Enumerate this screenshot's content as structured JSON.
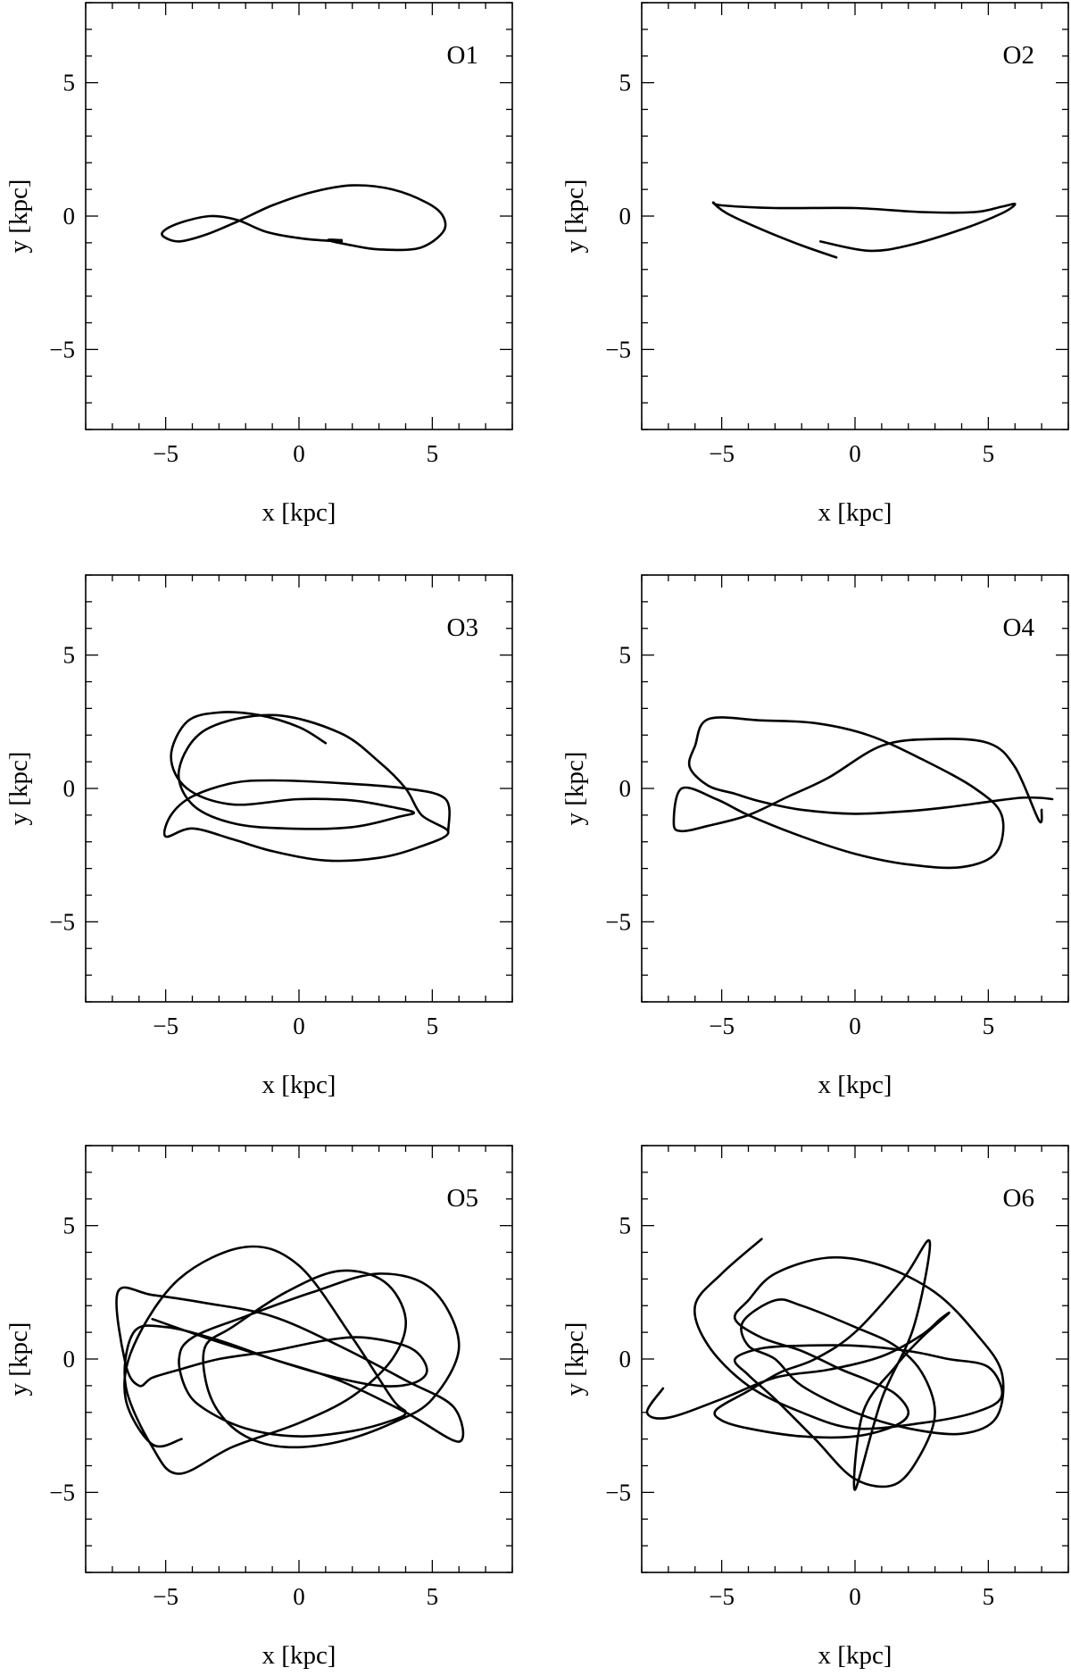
{
  "chart_data": [
    {
      "type": "line",
      "panel_label": "O1",
      "xlabel": "x [kpc]",
      "ylabel": "y [kpc]",
      "xlim": [
        -8,
        8
      ],
      "ylim": [
        -8,
        8
      ],
      "xticks": [
        -5,
        0,
        5
      ],
      "yticks": [
        -5,
        0,
        5
      ],
      "xtick_labels": [
        "−5",
        "0",
        "5"
      ],
      "ytick_labels": [
        "−5",
        "0",
        "5"
      ],
      "series": [
        {
          "x": [
            1.6,
            0.2,
            -1.2,
            -2.3,
            -3.3,
            -4.3,
            -5.0,
            -5.1,
            -4.5,
            -3.5,
            -2.3,
            -1.0,
            0.5,
            2.0,
            3.5,
            4.8,
            5.4,
            5.4,
            4.5,
            3.0,
            2.0,
            1.1,
            1.6
          ],
          "y": [
            -0.95,
            -0.85,
            -0.6,
            -0.15,
            0.0,
            -0.2,
            -0.5,
            -0.75,
            -0.95,
            -0.7,
            -0.2,
            0.4,
            0.9,
            1.15,
            1.0,
            0.5,
            0.0,
            -0.6,
            -1.2,
            -1.25,
            -1.1,
            -0.9,
            -0.9
          ]
        }
      ]
    },
    {
      "type": "line",
      "panel_label": "O2",
      "xlabel": "x [kpc]",
      "ylabel": "y [kpc]",
      "xlim": [
        -8,
        8
      ],
      "ylim": [
        -8,
        8
      ],
      "xticks": [
        -5,
        0,
        5
      ],
      "yticks": [
        -5,
        0,
        5
      ],
      "xtick_labels": [
        "−5",
        "0",
        "5"
      ],
      "ytick_labels": [
        "−5",
        "0",
        "5"
      ],
      "series": [
        {
          "x": [
            -0.7,
            -2.0,
            -3.5,
            -4.8,
            -5.3,
            -5.0,
            -3.0,
            0.0,
            2.5,
            4.5,
            5.5,
            6.0,
            5.5,
            4.0,
            2.0,
            0.5,
            -1.3
          ],
          "y": [
            -1.55,
            -1.1,
            -0.5,
            0.1,
            0.5,
            0.4,
            0.3,
            0.3,
            0.15,
            0.15,
            0.35,
            0.45,
            0.1,
            -0.5,
            -1.1,
            -1.3,
            -0.95
          ]
        }
      ]
    },
    {
      "type": "line",
      "panel_label": "O3",
      "xlabel": "x [kpc]",
      "ylabel": "y [kpc]",
      "xlim": [
        -8,
        8
      ],
      "ylim": [
        -8,
        8
      ],
      "xticks": [
        -5,
        0,
        5
      ],
      "yticks": [
        -5,
        0,
        5
      ],
      "xtick_labels": [
        "−5",
        "0",
        "5"
      ],
      "ytick_labels": [
        "−5",
        "0",
        "5"
      ],
      "series": [
        {
          "x": [
            1.0,
            0.0,
            -1.5,
            -3.0,
            -4.2,
            -4.8,
            -4.2,
            -2.5,
            0.0,
            2.0,
            3.5,
            4.3,
            3.8,
            2.0,
            -0.5,
            -2.5,
            -4.0,
            -4.5,
            -3.5,
            -1.0,
            1.5,
            3.0,
            4.0,
            4.6,
            5.6,
            4.5,
            3.0,
            1.0,
            -1.0,
            -2.5,
            -4.0,
            -5.0,
            -4.8,
            -4.0,
            -2.5,
            -1.0,
            1.5,
            4.0,
            5.5,
            5.6
          ],
          "y": [
            1.7,
            2.3,
            2.75,
            2.85,
            2.5,
            1.2,
            0.0,
            -0.6,
            -0.4,
            -0.45,
            -0.7,
            -0.9,
            -1.05,
            -1.45,
            -1.5,
            -1.3,
            -0.6,
            0.7,
            2.2,
            2.75,
            2.1,
            1.0,
            0.0,
            -1.0,
            -1.65,
            -2.2,
            -2.6,
            -2.7,
            -2.35,
            -1.9,
            -1.5,
            -1.8,
            -1.0,
            -0.3,
            0.2,
            0.3,
            0.2,
            0.0,
            -0.4,
            -1.6
          ]
        }
      ]
    },
    {
      "type": "line",
      "panel_label": "O4",
      "xlabel": "x [kpc]",
      "ylabel": "y [kpc]",
      "xlim": [
        -8,
        8
      ],
      "ylim": [
        -8,
        8
      ],
      "xticks": [
        -5,
        0,
        5
      ],
      "yticks": [
        -5,
        0,
        5
      ],
      "xtick_labels": [
        "−5",
        "0",
        "5"
      ],
      "ytick_labels": [
        "−5",
        "0",
        "5"
      ],
      "series": [
        {
          "x": [
            7.4,
            6.9,
            6.2,
            5.0,
            3.5,
            2.0,
            0.0,
            -2.0,
            -3.5,
            -4.5,
            -5.5,
            -6.2,
            -6.0,
            -5.5,
            -3.5,
            -1.5,
            0.5,
            2.5,
            4.5,
            5.5,
            5.3,
            4.0,
            2.0,
            0.0,
            -2.0,
            -4.0,
            -5.2,
            -6.5,
            -6.8,
            -6.5,
            -5.5,
            -4.0,
            -2.5,
            -1.0,
            1.0,
            3.0,
            5.0,
            6.0,
            6.9,
            7.0
          ],
          "y": [
            -0.4,
            -0.35,
            -0.35,
            -0.5,
            -0.7,
            -0.85,
            -0.95,
            -0.8,
            -0.5,
            -0.2,
            0.1,
            0.8,
            1.6,
            2.6,
            2.55,
            2.45,
            2.0,
            1.1,
            0.0,
            -1.0,
            -2.4,
            -2.95,
            -2.85,
            -2.45,
            -1.8,
            -1.0,
            -0.4,
            0.0,
            -1.3,
            -1.6,
            -1.4,
            -1.0,
            -0.3,
            0.4,
            1.6,
            1.85,
            1.7,
            0.8,
            -1.2,
            -0.8
          ]
        }
      ]
    },
    {
      "type": "line",
      "panel_label": "O5",
      "xlabel": "x [kpc]",
      "ylabel": "y [kpc]",
      "xlim": [
        -8,
        8
      ],
      "ylim": [
        -8,
        8
      ],
      "xticks": [
        -5,
        0,
        5
      ],
      "yticks": [
        -5,
        0,
        5
      ],
      "xtick_labels": [
        "−5",
        "0",
        "5"
      ],
      "ytick_labels": [
        "−5",
        "0",
        "5"
      ],
      "series": [
        {
          "x": [
            -4.4,
            -5.5,
            -6.5,
            -6.2,
            -4.5,
            -2.0,
            0.0,
            2.0,
            3.5,
            4.0,
            3.5,
            2.0,
            0.0,
            -2.0,
            -3.5,
            -4.2,
            -4.5,
            -4.0,
            -2.0,
            0.5,
            3.0,
            5.0,
            6.0,
            5.0,
            3.5,
            1.5,
            -0.5,
            -2.0,
            -3.0,
            -3.5,
            -3.5,
            -2.5,
            -0.5,
            1.5,
            3.2,
            4.0,
            3.5,
            2.0,
            0.0,
            -2.5,
            -4.5,
            -5.5,
            -6.5,
            -6.2,
            -5.0,
            -3.0,
            -1.0,
            1.0,
            3.0,
            4.3,
            4.8,
            4.2,
            2.5,
            1.0,
            -1.0,
            -3.0,
            -4.5,
            -5.5,
            -6.0,
            -6.5,
            -6.8,
            -5.5,
            -3.5,
            -1.0,
            1.5,
            4.0,
            5.8,
            6.0,
            4.0,
            1.5,
            -1.0,
            -3.5,
            -5.5
          ],
          "y": [
            -3.0,
            -3.2,
            -1.5,
            0.5,
            3.0,
            4.2,
            3.5,
            0.8,
            -1.5,
            -2.0,
            -2.3,
            -2.7,
            -2.9,
            -2.6,
            -1.9,
            -1.2,
            0.0,
            0.8,
            1.6,
            2.5,
            3.2,
            2.6,
            0.5,
            -1.5,
            -2.4,
            -3.1,
            -3.3,
            -2.9,
            -2.0,
            -0.8,
            0.5,
            1.2,
            2.5,
            3.3,
            2.9,
            1.5,
            0.0,
            -1.4,
            -2.4,
            -3.3,
            -4.3,
            -3.3,
            -1.0,
            1.0,
            1.2,
            0.7,
            0.0,
            -0.6,
            -1.0,
            -0.9,
            -0.4,
            0.4,
            0.8,
            0.7,
            0.3,
            0.0,
            -0.4,
            -0.7,
            -1.0,
            -0.2,
            2.5,
            2.4,
            2.1,
            1.6,
            0.5,
            -0.8,
            -1.8,
            -3.1,
            -2.0,
            -0.8,
            0.0,
            0.8,
            1.5
          ]
        }
      ]
    },
    {
      "type": "line",
      "panel_label": "O6",
      "xlabel": "x [kpc]",
      "ylabel": "y [kpc]",
      "xlim": [
        -8,
        8
      ],
      "ylim": [
        -8,
        8
      ],
      "xticks": [
        -5,
        0,
        5
      ],
      "yticks": [
        -5,
        0,
        5
      ],
      "xtick_labels": [
        "−5",
        "0",
        "5"
      ],
      "ytick_labels": [
        "−5",
        "0",
        "5"
      ],
      "series": [
        {
          "x": [
            -7.2,
            -7.8,
            -7.0,
            -5.0,
            -3.0,
            -1.0,
            1.0,
            2.5,
            3.2,
            3.5,
            2.5,
            1.5,
            0.3,
            0.0,
            1.0,
            2.2,
            2.8,
            1.8,
            0.0,
            -1.5,
            -2.8,
            -4.0,
            -5.2,
            -5.0,
            -4.0,
            -2.0,
            0.0,
            1.5,
            2.0,
            1.5,
            0.5,
            -0.5,
            -2.0,
            -3.5,
            -4.5,
            -4.0,
            -3.0,
            -1.0,
            1.0,
            3.0,
            4.5,
            5.5,
            5.3,
            4.0,
            2.0,
            0.0,
            -2.0,
            -3.0,
            -4.0,
            -4.2,
            -3.0,
            -2.0,
            0.0,
            1.5,
            2.5,
            3.0,
            2.5,
            1.5,
            0.0,
            -1.5,
            -3.0,
            -4.0,
            -4.5,
            -3.5,
            -2.0,
            0.0,
            2.0,
            3.5,
            5.0,
            5.5,
            4.5,
            2.5,
            0.0,
            -2.0,
            -4.0,
            -5.5,
            -6.0,
            -5.0,
            -3.5
          ],
          "y": [
            -1.1,
            -2.0,
            -2.2,
            -1.5,
            -0.7,
            -0.4,
            0.1,
            0.9,
            1.5,
            1.7,
            0.8,
            -0.3,
            -2.0,
            -4.9,
            -1.5,
            1.2,
            4.4,
            3.0,
            1.0,
            0.0,
            -0.5,
            -1.2,
            -1.9,
            -2.3,
            -2.6,
            -2.9,
            -2.9,
            -2.5,
            -2.0,
            -1.3,
            -0.8,
            -0.4,
            0.3,
            0.8,
            1.5,
            2.2,
            3.2,
            3.8,
            3.5,
            2.5,
            1.0,
            -0.5,
            -2.2,
            -2.8,
            -2.6,
            -2.0,
            -1.0,
            0.0,
            0.5,
            1.4,
            2.2,
            2.0,
            1.2,
            0.5,
            -0.5,
            -2.0,
            -3.5,
            -4.7,
            -4.5,
            -3.0,
            -1.5,
            -0.6,
            0.0,
            0.4,
            0.5,
            0.5,
            0.3,
            0.0,
            -0.3,
            -1.4,
            -2.0,
            -2.4,
            -2.6,
            -2.0,
            -1.0,
            0.5,
            2.0,
            3.2,
            4.5
          ]
        }
      ]
    }
  ]
}
